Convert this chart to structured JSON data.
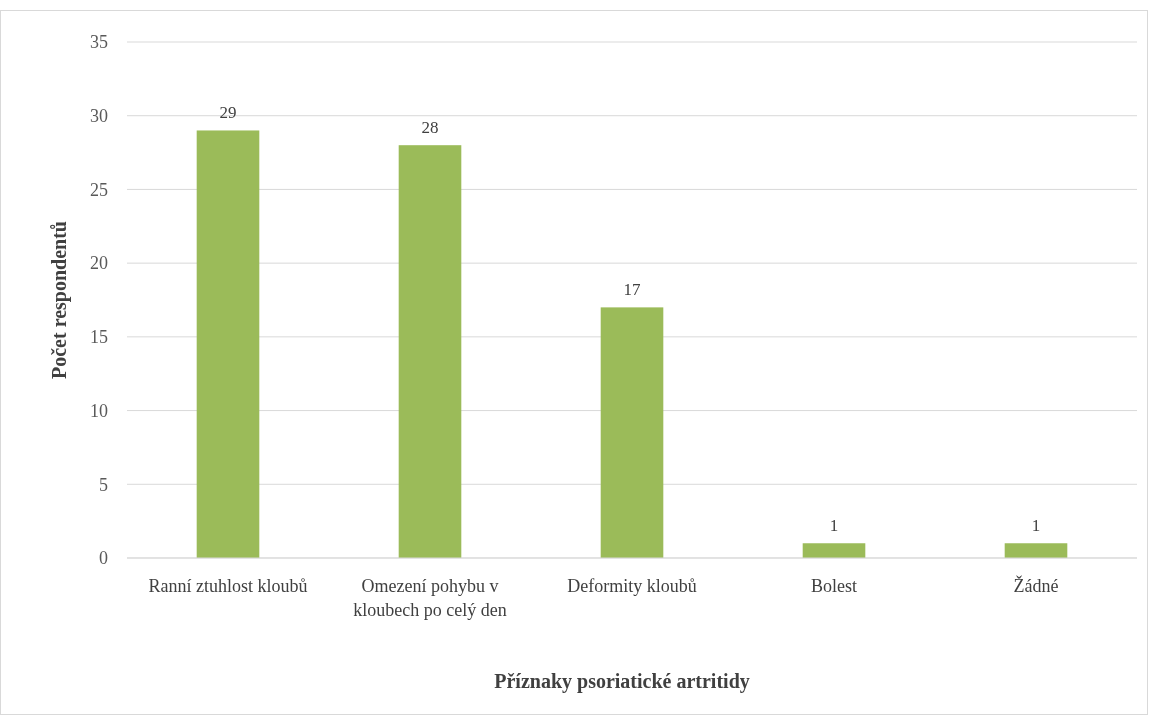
{
  "chart_data": {
    "type": "bar",
    "xlabel": "Příznaky psoriatické artritidy",
    "ylabel": "Počet respondentů",
    "categories": [
      "Ranní ztuhlost kloubů",
      "Omezení pohybu v kloubech po celý den",
      "Deformity kloubů",
      "Bolest",
      "Žádné"
    ],
    "values": [
      29,
      28,
      17,
      1,
      1
    ],
    "color": "#9bbb59",
    "ylim": [
      0,
      35
    ],
    "yticks": [
      0,
      5,
      10,
      15,
      20,
      25,
      30,
      35
    ],
    "grid": "y",
    "data_labels": true
  }
}
